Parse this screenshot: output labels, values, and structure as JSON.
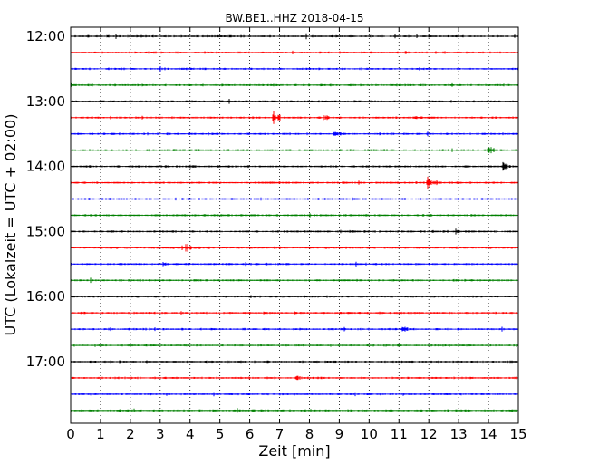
{
  "chart_data": {
    "type": "line",
    "title": "BW.BE1..HHZ 2018-04-15",
    "xlabel": "Zeit  [min]",
    "ylabel": "UTC (Lokalzeit = UTC + 02:00)",
    "xlim": [
      0,
      15
    ],
    "x_ticks": [
      0,
      1,
      2,
      3,
      4,
      5,
      6,
      7,
      8,
      9,
      10,
      11,
      12,
      13,
      14,
      15
    ],
    "y_tick_labels": [
      "12:00",
      "13:00",
      "14:00",
      "15:00",
      "16:00",
      "17:00"
    ],
    "grid": "vertical dotted",
    "line_start_times": [
      "12:00",
      "12:15",
      "12:30",
      "12:45",
      "13:00",
      "13:15",
      "13:30",
      "13:45",
      "14:00",
      "14:15",
      "14:30",
      "14:45",
      "15:00",
      "15:15",
      "15:30",
      "15:45",
      "16:00",
      "16:15",
      "16:30",
      "16:45",
      "17:00",
      "17:15",
      "17:30",
      "17:45"
    ],
    "color_cycle": [
      "#000000",
      "#ff0000",
      "#0000ff",
      "#008000"
    ],
    "events": [
      {
        "line_start": "12:15",
        "minute": 11.2,
        "amplitude": 2
      },
      {
        "line_start": "12:30",
        "minute": 3.0,
        "amplitude": 2.5
      },
      {
        "line_start": "12:45",
        "minute": 12.8,
        "amplitude": 2
      },
      {
        "line_start": "13:15",
        "minute": 6.8,
        "amplitude": 7
      },
      {
        "line_start": "13:15",
        "minute": 8.5,
        "amplitude": 3
      },
      {
        "line_start": "13:15",
        "minute": 11.5,
        "amplitude": 3
      },
      {
        "line_start": "13:30",
        "minute": 8.8,
        "amplitude": 5
      },
      {
        "line_start": "13:45",
        "minute": 14.0,
        "amplitude": 5
      },
      {
        "line_start": "14:00",
        "minute": 4.0,
        "amplitude": 2
      },
      {
        "line_start": "14:00",
        "minute": 14.5,
        "amplitude": 7
      },
      {
        "line_start": "14:15",
        "minute": 12.0,
        "amplitude": 12
      },
      {
        "line_start": "15:00",
        "minute": 12.9,
        "amplitude": 3
      },
      {
        "line_start": "15:15",
        "minute": 3.8,
        "amplitude": 8
      },
      {
        "line_start": "15:30",
        "minute": 3.1,
        "amplitude": 3
      },
      {
        "line_start": "16:30",
        "minute": 11.1,
        "amplitude": 4
      },
      {
        "line_start": "17:15",
        "minute": 7.6,
        "amplitude": 3
      }
    ]
  }
}
